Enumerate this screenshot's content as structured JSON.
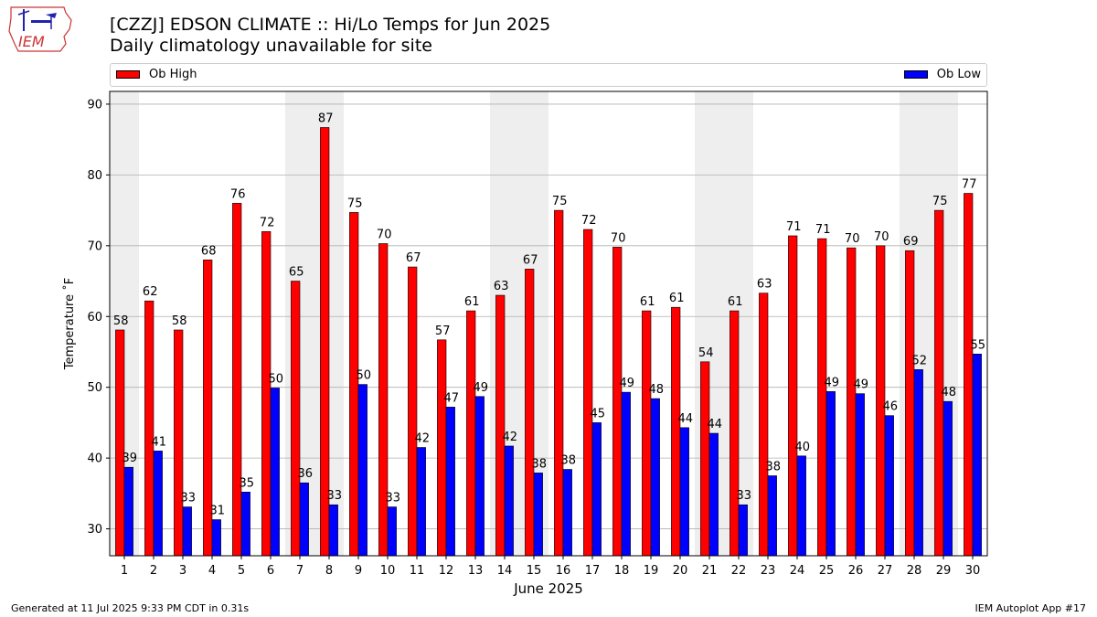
{
  "header": {
    "title_line1": "[CZZJ] EDSON CLIMATE :: Hi/Lo Temps for Jun 2025",
    "title_line2": "Daily climatology unavailable for site"
  },
  "logo": {
    "text": "IEM"
  },
  "footer": {
    "generated": "Generated at 11 Jul 2025 9:33 PM CDT in 0.31s",
    "app": "IEM Autoplot App #17"
  },
  "colors": {
    "high": "#ff0000",
    "low": "#0000ff",
    "weekend_band": "#eeeeee",
    "grid": "#b0b0b0"
  },
  "chart_data": {
    "type": "bar",
    "xlabel": "June 2025",
    "ylabel": "Temperature ˚F",
    "ylim": [
      26.2,
      91.8
    ],
    "yticks": [
      30,
      40,
      50,
      60,
      70,
      80,
      90
    ],
    "grid": true,
    "legend_placement": "top",
    "categories": [
      "1",
      "2",
      "3",
      "4",
      "5",
      "6",
      "7",
      "8",
      "9",
      "10",
      "11",
      "12",
      "13",
      "14",
      "15",
      "16",
      "17",
      "18",
      "19",
      "20",
      "21",
      "22",
      "23",
      "24",
      "25",
      "26",
      "27",
      "28",
      "29",
      "30"
    ],
    "shaded_days": [
      1,
      7,
      8,
      14,
      15,
      21,
      22,
      28,
      29
    ],
    "series": [
      {
        "name": "Ob High",
        "values": [
          58.1,
          62.2,
          58.1,
          68.0,
          76.0,
          72.0,
          65.0,
          86.7,
          74.7,
          70.3,
          67.0,
          56.7,
          60.8,
          63.0,
          66.7,
          75.0,
          72.3,
          69.8,
          60.8,
          61.3,
          53.6,
          60.8,
          63.3,
          71.4,
          71.0,
          69.7,
          70.0,
          69.3,
          75.0,
          77.4
        ],
        "labels": [
          "58",
          "62",
          "58",
          "68",
          "76",
          "72",
          "65",
          "87",
          "75",
          "70",
          "67",
          "57",
          "61",
          "63",
          "67",
          "75",
          "72",
          "70",
          "61",
          "61",
          "54",
          "61",
          "63",
          "71",
          "71",
          "70",
          "70",
          "69",
          "75",
          "77"
        ]
      },
      {
        "name": "Ob Low",
        "values": [
          38.7,
          41.0,
          33.1,
          31.3,
          35.2,
          49.9,
          36.5,
          33.4,
          50.4,
          33.1,
          41.5,
          47.2,
          48.7,
          41.7,
          37.9,
          38.4,
          45.0,
          49.3,
          48.4,
          44.3,
          43.5,
          33.4,
          37.5,
          40.3,
          49.4,
          49.1,
          46.0,
          52.5,
          48.0,
          54.7
        ],
        "labels": [
          "39",
          "41",
          "33",
          "31",
          "35",
          "50",
          "36",
          "33",
          "50",
          "33",
          "42",
          "47",
          "49",
          "42",
          "38",
          "38",
          "45",
          "49",
          "48",
          "44",
          "44",
          "33",
          "38",
          "40",
          "49",
          "49",
          "46",
          "52",
          "48",
          "55"
        ]
      }
    ]
  }
}
